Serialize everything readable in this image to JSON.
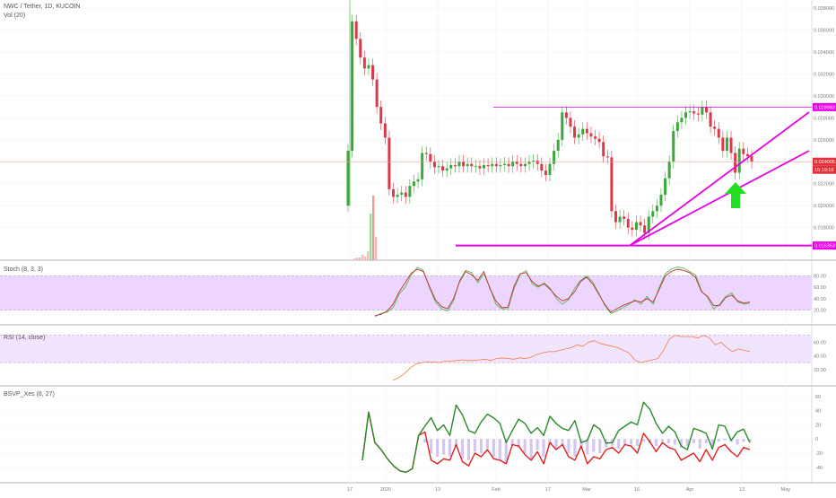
{
  "header": {
    "symbol_line": "NWC / Tether, 1D, KUCOIN",
    "volume_label": "Vol (20)"
  },
  "colors": {
    "up": "#3aa83a",
    "down": "#d83a4a",
    "trendline": "#e600e6",
    "price_line": "#e8a0a0",
    "stoch_fill": "#ecd6ff",
    "rsi_fill": "#f1e4ff",
    "stoch_k": "#c03030",
    "stoch_d": "#5ab85a",
    "rsi_line": "#f08040",
    "bsvp_green": "#2a8a2a",
    "bsvp_red": "#e02020",
    "bsvp_hist": "#c8b8ee",
    "arrow": "#22dd22"
  },
  "chart_data": [
    {
      "type": "candlestick",
      "pane": "price",
      "title": "NWC / Tether, 1D, KUCOIN",
      "x_ticks": [
        "17",
        "2020",
        "13",
        "Feb",
        "17",
        "Mar",
        "16",
        "Apr",
        "13",
        "May"
      ],
      "y_ticks": [
        "0.038000",
        "0.036000",
        "0.034000",
        "0.032000",
        "0.030000",
        "0.028000",
        "0.026000",
        "0.024000",
        "0.022000",
        "0.020000",
        "0.018000"
      ],
      "ylim": [
        0.0156,
        0.0385
      ],
      "price_labels": {
        "resistance": "0.028983",
        "last_price": "0.024005",
        "countdown": "15:19:16",
        "support": "0.016363"
      },
      "levels": {
        "resistance": 0.028983,
        "last_price": 0.024005,
        "support": 0.016363
      },
      "volume_indicator": "Vol (20)",
      "closes": [
        0.025,
        0.0368,
        0.0352,
        0.0335,
        0.0325,
        0.0328,
        0.0315,
        0.029,
        0.0275,
        0.0262,
        0.0215,
        0.0208,
        0.021,
        0.0212,
        0.0208,
        0.0218,
        0.0222,
        0.0224,
        0.0248,
        0.0247,
        0.024,
        0.0235,
        0.0236,
        0.0232,
        0.0234,
        0.0237,
        0.0236,
        0.024,
        0.0236,
        0.0238,
        0.0236,
        0.0236,
        0.0234,
        0.0237,
        0.0236,
        0.0238,
        0.0236,
        0.0237,
        0.0238,
        0.0236,
        0.024,
        0.0238,
        0.0236,
        0.0238,
        0.024,
        0.0241,
        0.0238,
        0.0232,
        0.0228,
        0.0238,
        0.025,
        0.026,
        0.0285,
        0.028,
        0.0272,
        0.0262,
        0.0265,
        0.027,
        0.0266,
        0.0263,
        0.0261,
        0.0258,
        0.0245,
        0.0244,
        0.0195,
        0.0185,
        0.019,
        0.0188,
        0.018,
        0.0178,
        0.0185,
        0.0182,
        0.0175,
        0.019,
        0.0195,
        0.02,
        0.021,
        0.0225,
        0.024,
        0.0268,
        0.0276,
        0.028,
        0.0285,
        0.0286,
        0.0284,
        0.0283,
        0.029,
        0.0285,
        0.0272,
        0.027,
        0.0262,
        0.025,
        0.0262,
        0.0248,
        0.023,
        0.0252,
        0.0247,
        0.0245,
        0.024
      ]
    },
    {
      "type": "line",
      "pane": "stoch",
      "title": "Stoch (8, 3, 3)",
      "y_ticks": [
        "80.00",
        "60.00",
        "40.00",
        "20.00"
      ],
      "ylim": [
        0,
        100
      ],
      "band": [
        20,
        80
      ],
      "series": [
        {
          "name": "%K",
          "values": [
            10,
            12,
            18,
            30,
            52,
            68,
            85,
            92,
            88,
            62,
            38,
            26,
            22,
            40,
            70,
            88,
            82,
            72,
            88,
            58,
            36,
            24,
            25,
            62,
            84,
            86,
            70,
            62,
            66,
            56,
            44,
            36,
            40,
            52,
            70,
            78,
            66,
            48,
            30,
            16,
            22,
            28,
            32,
            36,
            34,
            40,
            34,
            56,
            80,
            88,
            92,
            90,
            86,
            78,
            52,
            44,
            28,
            28,
            42,
            46,
            36,
            32,
            34
          ]
        },
        {
          "name": "%D",
          "values": [
            8,
            14,
            16,
            24,
            48,
            60,
            82,
            95,
            90,
            60,
            34,
            22,
            18,
            36,
            72,
            90,
            86,
            68,
            84,
            60,
            30,
            22,
            22,
            58,
            82,
            90,
            66,
            60,
            68,
            58,
            40,
            30,
            38,
            58,
            72,
            80,
            70,
            50,
            28,
            14,
            18,
            24,
            30,
            38,
            30,
            44,
            30,
            60,
            84,
            92,
            96,
            94,
            88,
            82,
            54,
            42,
            22,
            30,
            44,
            50,
            34,
            30,
            32
          ]
        }
      ]
    },
    {
      "type": "line",
      "pane": "rsi",
      "title": "RSI (14, close)",
      "y_ticks": [
        "60.00",
        "40.00",
        "20.00"
      ],
      "ylim": [
        0,
        80
      ],
      "band": [
        30,
        70
      ],
      "series": [
        {
          "name": "RSI",
          "values": [
            4,
            8,
            14,
            22,
            28,
            30,
            31,
            31,
            30,
            32,
            32,
            33,
            34,
            33,
            33,
            34,
            35,
            33,
            36,
            37,
            36,
            35,
            37,
            36,
            38,
            42,
            44,
            46,
            46,
            48,
            50,
            52,
            56,
            54,
            60,
            62,
            58,
            56,
            54,
            52,
            48,
            44,
            34,
            30,
            32,
            34,
            36,
            48,
            64,
            70,
            68,
            68,
            68,
            66,
            70,
            66,
            56,
            60,
            52,
            46,
            50,
            48,
            46
          ]
        }
      ]
    },
    {
      "type": "line",
      "pane": "bsvp",
      "title": "BSVP_Xes (8, 27)",
      "y_ticks": [
        "60",
        "40",
        "20",
        "0",
        "-20",
        "-40"
      ],
      "ylim": [
        -58,
        70
      ],
      "series": [
        {
          "name": "Buy",
          "values": [
            -30,
            38,
            -5,
            -15,
            -28,
            -38,
            -45,
            -47,
            -42,
            5,
            18,
            30,
            12,
            20,
            5,
            48,
            34,
            12,
            8,
            24,
            35,
            30,
            22,
            -5,
            12,
            28,
            22,
            8,
            16,
            5,
            32,
            22,
            15,
            12,
            26,
            -5,
            -2,
            20,
            14,
            -6,
            -5,
            12,
            18,
            24,
            20,
            52,
            42,
            22,
            8,
            18,
            10,
            -10,
            -15,
            15,
            12,
            8,
            -14,
            20,
            18,
            -2,
            10,
            14,
            -5
          ]
        },
        {
          "name": "Sell",
          "values": [
            -30,
            38,
            -5,
            -15,
            -28,
            -38,
            -45,
            -47,
            -42,
            5,
            10,
            -30,
            -35,
            -28,
            -30,
            -8,
            -32,
            -38,
            -20,
            -25,
            -15,
            -28,
            -30,
            -35,
            -8,
            -10,
            -22,
            -30,
            -18,
            -35,
            -5,
            -15,
            -8,
            -25,
            -30,
            -10,
            -35,
            -25,
            -28,
            -15,
            -12,
            -20,
            -8,
            -10,
            -20,
            8,
            -4,
            -18,
            -5,
            -12,
            -15,
            -30,
            -25,
            -20,
            -32,
            -15,
            -30,
            -12,
            -8,
            -18,
            -25,
            -12,
            -15
          ]
        },
        {
          "name": "Histogram",
          "values": [
            0,
            0,
            0,
            0,
            0,
            0,
            0,
            0,
            0,
            0,
            -5,
            -20,
            -25,
            -22,
            -25,
            -10,
            -28,
            -30,
            -18,
            -20,
            -14,
            -25,
            -30,
            -32,
            -10,
            -12,
            -20,
            -28,
            -16,
            -25,
            -8,
            -14,
            -10,
            -20,
            -25,
            -12,
            -22,
            -18,
            -20,
            -12,
            -10,
            -14,
            -8,
            -8,
            -10,
            -4,
            -6,
            -10,
            -4,
            -6,
            -8,
            -12,
            -10,
            -6,
            -14,
            -6,
            -10,
            -4,
            -2,
            -4,
            -8,
            -4,
            -4
          ]
        }
      ]
    }
  ]
}
